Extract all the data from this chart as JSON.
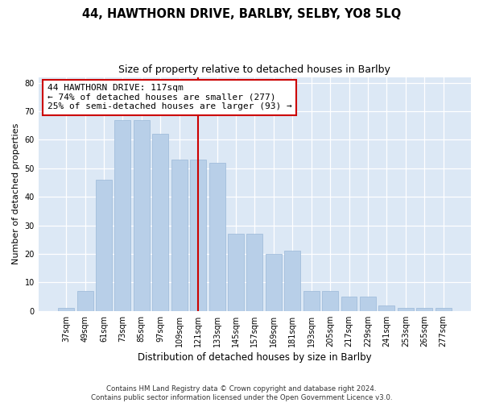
{
  "title": "44, HAWTHORN DRIVE, BARLBY, SELBY, YO8 5LQ",
  "subtitle": "Size of property relative to detached houses in Barlby",
  "xlabel": "Distribution of detached houses by size in Barlby",
  "ylabel": "Number of detached properties",
  "categories": [
    "37sqm",
    "49sqm",
    "61sqm",
    "73sqm",
    "85sqm",
    "97sqm",
    "109sqm",
    "121sqm",
    "133sqm",
    "145sqm",
    "157sqm",
    "169sqm",
    "181sqm",
    "193sqm",
    "205sqm",
    "217sqm",
    "229sqm",
    "241sqm",
    "253sqm",
    "265sqm",
    "277sqm"
  ],
  "values": [
    1,
    7,
    46,
    67,
    67,
    62,
    53,
    53,
    52,
    27,
    27,
    20,
    21,
    7,
    7,
    5,
    5,
    2,
    1,
    1,
    1
  ],
  "bar_color": "#b8cfe8",
  "bar_edgecolor": "#9ab8d8",
  "vline_x_index": 7,
  "vline_color": "#cc0000",
  "annotation_text": "44 HAWTHORN DRIVE: 117sqm\n← 74% of detached houses are smaller (277)\n25% of semi-detached houses are larger (93) →",
  "annotation_box_facecolor": "#ffffff",
  "annotation_box_edgecolor": "#cc0000",
  "ylim": [
    0,
    82
  ],
  "yticks": [
    0,
    10,
    20,
    30,
    40,
    50,
    60,
    70,
    80
  ],
  "footer": "Contains HM Land Registry data © Crown copyright and database right 2024.\nContains public sector information licensed under the Open Government Licence v3.0.",
  "fig_bg_color": "#ffffff",
  "plot_bg_color": "#dce8f5"
}
